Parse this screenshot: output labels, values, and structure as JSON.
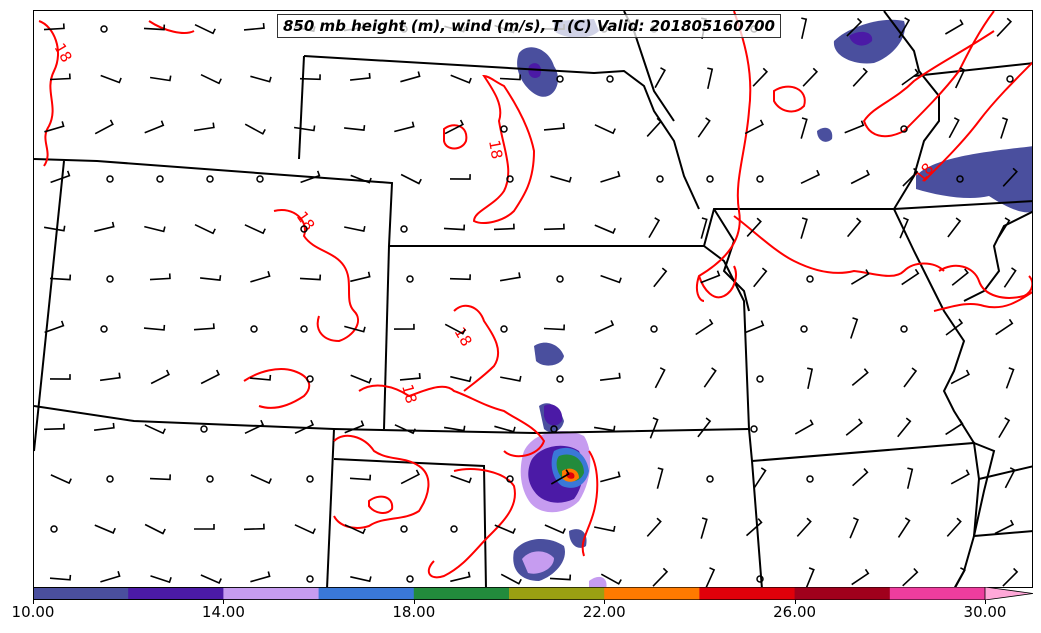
{
  "title": "850 mb height (m), wind (m/s), T (C) Valid: 201805160700",
  "contour_label": "18",
  "isotherm_color": "#ff0000",
  "boundary_color": "#000000",
  "colorbar": {
    "colors": [
      "#4a4f9e",
      "#4b1aa6",
      "#c69cf0",
      "#3a78d8",
      "#228b3c",
      "#9aa012",
      "#ff7a00",
      "#e0000a",
      "#a0001c",
      "#ee3d9e",
      "#ffa8d8"
    ],
    "tick_labels": [
      "10.00",
      "14.00",
      "18.00",
      "22.00",
      "26.00",
      "30.00"
    ],
    "tick_values": [
      10,
      14,
      18,
      22,
      26,
      30
    ],
    "range": [
      10,
      31.1
    ]
  }
}
